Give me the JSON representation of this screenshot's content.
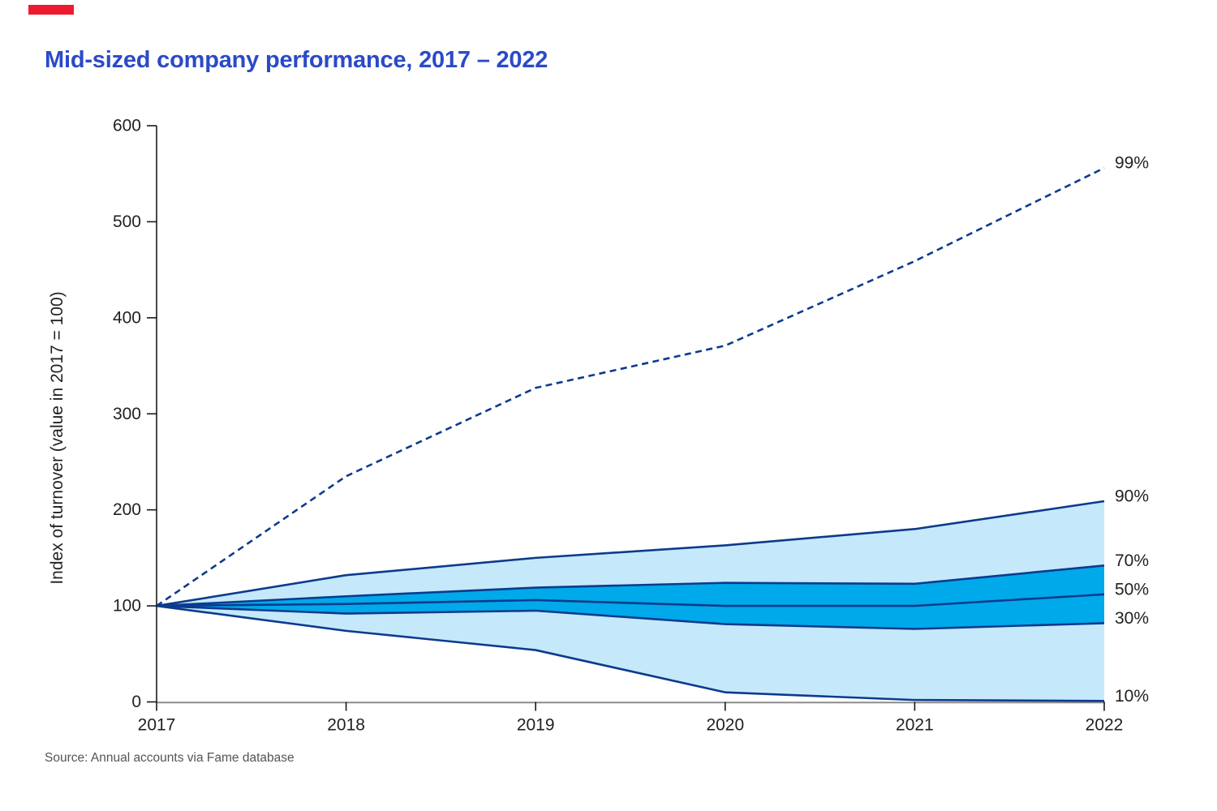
{
  "title": "Mid-sized company performance, 2017 – 2022",
  "source": "Source: Annual accounts via Fame database",
  "brand_bar_color": "#ed1b2e",
  "title_color": "#2b4ac7",
  "chart_data": {
    "type": "area",
    "subtype": "percentile-fan-chart",
    "title": "Mid-sized company performance, 2017 – 2022",
    "categories": [
      "2017",
      "2018",
      "2019",
      "2020",
      "2021",
      "2022"
    ],
    "xlabel": "",
    "ylabel": "Index of turnover (value in 2017 = 100)",
    "ylim": [
      0,
      600
    ],
    "y_ticks": [
      0,
      100,
      200,
      300,
      400,
      500,
      600
    ],
    "grid": false,
    "legend_position": "right-edge-labels",
    "series": [
      {
        "name": "99%",
        "style": "dashed",
        "values": [
          100,
          235,
          327,
          371,
          459,
          556
        ]
      },
      {
        "name": "90%",
        "style": "solid",
        "values": [
          100,
          132,
          150,
          163,
          180,
          209
        ]
      },
      {
        "name": "70%",
        "style": "solid",
        "values": [
          100,
          110,
          119,
          124,
          123,
          142
        ]
      },
      {
        "name": "50%",
        "style": "solid",
        "values": [
          100,
          102,
          106,
          100,
          100,
          112
        ]
      },
      {
        "name": "30%",
        "style": "solid",
        "values": [
          100,
          92,
          95,
          81,
          76,
          82
        ]
      },
      {
        "name": "10%",
        "style": "solid",
        "values": [
          100,
          74,
          54,
          10,
          2,
          1
        ]
      }
    ],
    "bands": [
      {
        "upper": "90%",
        "lower": "10%",
        "fill": "#c5e9fb"
      },
      {
        "upper": "70%",
        "lower": "30%",
        "fill": "#00a9e9"
      }
    ],
    "line_color": "#0c3b8d",
    "axis_color": "#1a1a1a",
    "x_axis_line_color": "#8c8c8c",
    "text_color": "#231f20"
  }
}
